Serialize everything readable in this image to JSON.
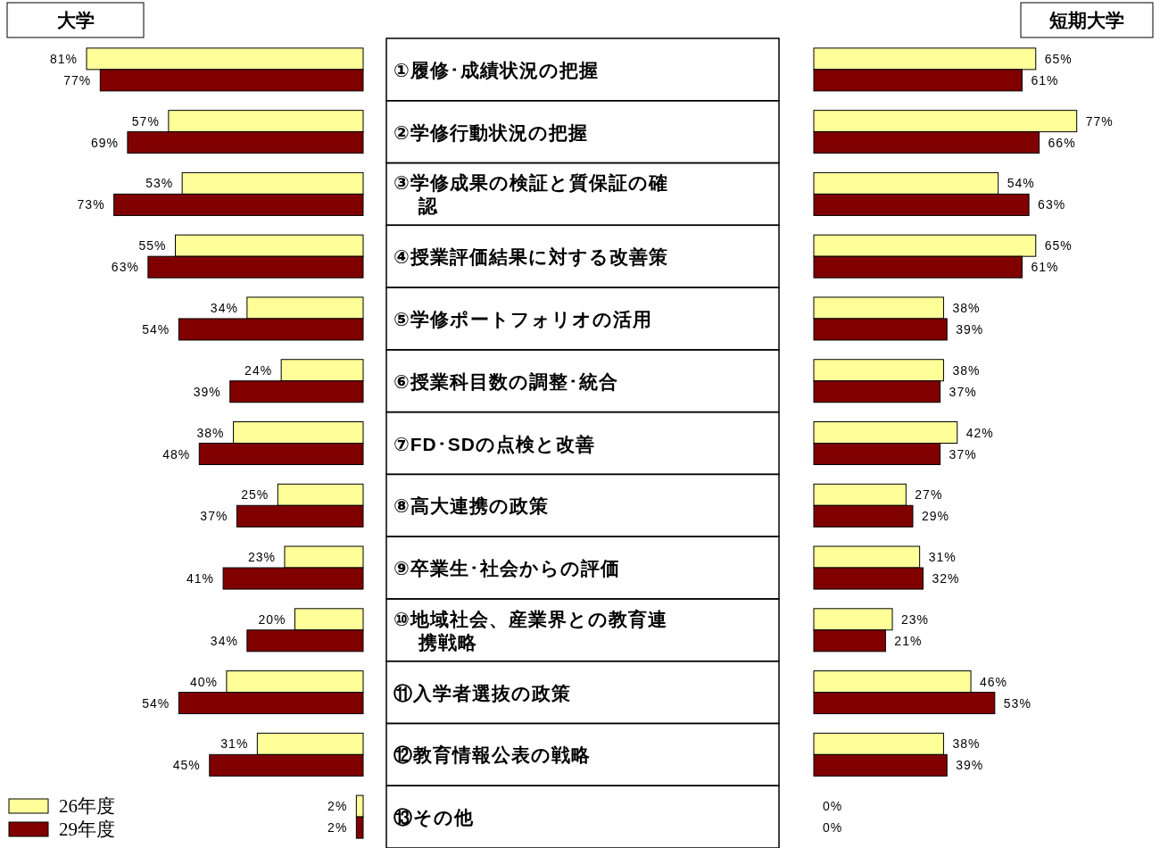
{
  "chart_data": [
    {
      "type": "bar",
      "orientation": "horizontal",
      "title": "大学",
      "categories": [
        "①履修･成績状況の把握",
        "②学修行動状況の把握",
        "③学修成果の検証と質保証の確認",
        "④授業評価結果に対する改善策",
        "⑤学修ポートフォリオの活用",
        "⑥授業科目数の調整･統合",
        "⑦FD･SDの点検と改善",
        "⑧高大連携の政策",
        "⑨卒業生･社会からの評価",
        "⑩地域社会、産業界との教育連携戦略",
        "⑪入学者選抜の政策",
        "⑫教育情報公表の戦略",
        "⑬その他"
      ],
      "legend": "bottom left",
      "series": [
        {
          "name": "26年度",
          "color": "#ffff99",
          "values": [
            81,
            57,
            53,
            55,
            34,
            24,
            38,
            25,
            23,
            20,
            40,
            31,
            2
          ],
          "value_labels": [
            "81%",
            "57%",
            "53%",
            "55%",
            "34%",
            "24%",
            "38%",
            "25%",
            "23%",
            "20%",
            "40%",
            "31%",
            "2%"
          ]
        },
        {
          "name": "29年度",
          "color": "#800000",
          "values": [
            77,
            69,
            73,
            63,
            54,
            39,
            48,
            37,
            41,
            34,
            54,
            45,
            2
          ],
          "value_labels": [
            "77%",
            "69%",
            "73%",
            "63%",
            "54%",
            "39%",
            "48%",
            "37%",
            "41%",
            "34%",
            "54%",
            "45%",
            "2%"
          ]
        }
      ]
    },
    {
      "type": "bar",
      "orientation": "horizontal",
      "title": "短期大学",
      "categories": [
        null,
        null,
        null,
        null,
        null,
        null,
        null,
        null,
        null,
        null,
        null,
        null,
        null
      ],
      "series": [
        {
          "color": "#ffff99",
          "values": [
            65,
            77,
            54,
            65,
            38,
            38,
            42,
            27,
            31,
            23,
            46,
            38,
            0
          ],
          "value_labels": [
            "65%",
            "77%",
            "54%",
            "65%",
            "38%",
            "38%",
            "42%",
            "27%",
            "31%",
            "23%",
            "46%",
            "38%",
            "0%"
          ]
        },
        {
          "color": "#800000",
          "values": [
            61,
            66,
            63,
            61,
            39,
            37,
            37,
            29,
            32,
            21,
            53,
            39,
            0
          ],
          "value_labels": [
            "61%",
            "66%",
            "63%",
            "61%",
            "39%",
            "37%",
            "37%",
            "29%",
            "32%",
            "21%",
            "53%",
            "39%",
            "0%"
          ]
        }
      ]
    }
  ]
}
